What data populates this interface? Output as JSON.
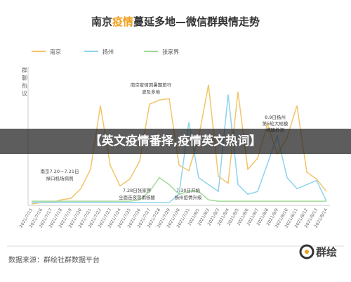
{
  "chart_data": {
    "type": "line",
    "title_parts": [
      "南京",
      "疫情",
      "蔓延多地—微信群舆情走势"
    ],
    "y_label": "群聊热议",
    "categories": [
      "2021/7/15",
      "2021/7/16",
      "2021/7/17",
      "2021/7/18",
      "2021/7/19",
      "2021/7/20",
      "2021/7/21",
      "2021/7/22",
      "2021/7/23",
      "2021/7/24",
      "2021/7/25",
      "2021/7/26",
      "2021/7/27",
      "2021/7/28",
      "2021/7/29",
      "2021/7/30",
      "2021/7/31",
      "2021/8/1",
      "2021/8/2",
      "2021/8/3",
      "2021/8/4",
      "2021/8/5",
      "2021/8/6",
      "2021/8/7",
      "2021/8/8",
      "2021/8/9",
      "2021/8/10",
      "2021/8/11",
      "2021/8/12",
      "2021/8/13",
      "2021/8/14"
    ],
    "series": [
      {
        "name": "南京",
        "color": "#f3c46a",
        "values": [
          1,
          2,
          2,
          4,
          5,
          12,
          26,
          72,
          29,
          14,
          19,
          32,
          73,
          76,
          77,
          29,
          25,
          49,
          87,
          21,
          16,
          82,
          26,
          34,
          59,
          37,
          49,
          72,
          24,
          19,
          10
        ]
      },
      {
        "name": "扬州",
        "color": "#8ed4ea",
        "values": [
          2,
          2,
          2,
          2,
          2,
          2,
          2,
          2,
          2,
          2,
          2,
          2,
          2,
          2,
          2,
          8,
          60,
          20,
          15,
          10,
          80,
          15,
          8,
          10,
          30,
          50,
          20,
          12,
          15,
          18,
          3
        ]
      },
      {
        "name": "张家界",
        "color": "#a3d99a",
        "values": [
          3,
          3,
          3,
          3,
          3,
          3,
          3,
          3,
          3,
          3,
          3,
          4,
          10,
          20,
          15,
          8,
          10,
          10,
          4,
          3,
          3,
          3,
          3,
          3,
          3,
          3,
          3,
          3,
          3,
          3,
          3
        ]
      }
    ],
    "ylim": [
      0,
      100
    ],
    "annotations": [
      "南京7.20－7.21日",
      "禄口机场病例",
      "南京疫情因暑期旅行",
      "波及多地",
      "7.28日张家界",
      "全面连夜冒雨核酸",
      "7.30日开始",
      "扬州疫情升级",
      "8.9日扬州",
      "第5轮大规模",
      "核酸检测"
    ],
    "banner": "【英文疫情番择,疫情英文热词】",
    "source": "数据来源：群绘社群数据平台",
    "logo": "群绘"
  }
}
